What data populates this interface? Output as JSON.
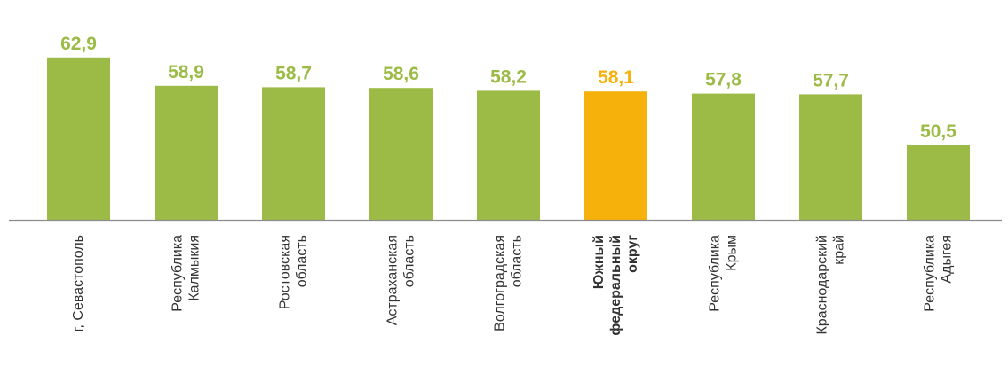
{
  "chart_data": {
    "type": "bar",
    "title": "",
    "xlabel": "",
    "ylabel": "",
    "grid": false,
    "legend": "none",
    "ylim": [
      40,
      65
    ],
    "bars": [
      {
        "label_lines": [
          "г, Севастополь"
        ],
        "value": 62.9,
        "display": "62,9",
        "highlight": false
      },
      {
        "label_lines": [
          "Республика",
          "Калмыкия"
        ],
        "value": 58.9,
        "display": "58,9",
        "highlight": false
      },
      {
        "label_lines": [
          "Ростовская",
          "область"
        ],
        "value": 58.7,
        "display": "58,7",
        "highlight": false
      },
      {
        "label_lines": [
          "Астраханская",
          "область"
        ],
        "value": 58.6,
        "display": "58,6",
        "highlight": false
      },
      {
        "label_lines": [
          "Волгоградская",
          "область"
        ],
        "value": 58.2,
        "display": "58,2",
        "highlight": false
      },
      {
        "label_lines": [
          "Южный",
          "федеральный",
          "округ"
        ],
        "value": 58.1,
        "display": "58,1",
        "highlight": true
      },
      {
        "label_lines": [
          "Республика",
          "Крым"
        ],
        "value": 57.8,
        "display": "57,8",
        "highlight": false
      },
      {
        "label_lines": [
          "Краснодарский",
          "край"
        ],
        "value": 57.7,
        "display": "57,7",
        "highlight": false
      },
      {
        "label_lines": [
          "Республика",
          "Адыгея"
        ],
        "value": 50.5,
        "display": "50,5",
        "highlight": false
      }
    ],
    "colors": {
      "bar": "#9cbb46",
      "highlight": "#f6b10a",
      "axis": "#8c8c8c"
    }
  }
}
